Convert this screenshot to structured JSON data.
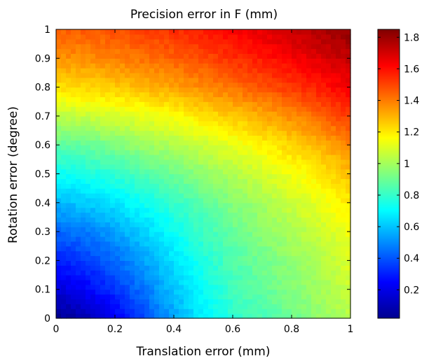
{
  "chart_data": {
    "type": "heatmap",
    "title": "Precision error in F (mm)",
    "xlabel": "Translation error (mm)",
    "ylabel": "Rotation error (degree)",
    "xlim": [
      0,
      1
    ],
    "ylim": [
      0,
      1
    ],
    "x_ticks": [
      "0",
      "0.2",
      "0.4",
      "0.6",
      "0.8",
      "1"
    ],
    "y_ticks": [
      "0",
      "0.1",
      "0.2",
      "0.3",
      "0.4",
      "0.5",
      "0.6",
      "0.7",
      "0.8",
      "0.9",
      "1"
    ],
    "colorbar": {
      "colormap": "jet",
      "range": [
        0.02,
        1.85
      ],
      "ticks": [
        "0.2",
        "0.4",
        "0.6",
        "0.8",
        "1",
        "1.2",
        "1.4",
        "1.6",
        "1.8"
      ]
    },
    "x": [
      0,
      0.1,
      0.2,
      0.3,
      0.4,
      0.5,
      0.6,
      0.7,
      0.8,
      0.9,
      1.0
    ],
    "y": [
      0,
      0.1,
      0.2,
      0.3,
      0.4,
      0.5,
      0.6,
      0.7,
      0.8,
      0.9,
      1.0
    ],
    "values": [
      [
        0.05,
        0.1,
        0.22,
        0.38,
        0.54,
        0.68,
        0.78,
        0.84,
        0.9,
        0.97,
        1.03
      ],
      [
        0.18,
        0.24,
        0.34,
        0.46,
        0.6,
        0.72,
        0.82,
        0.88,
        0.94,
        1.0,
        1.07
      ],
      [
        0.3,
        0.35,
        0.43,
        0.54,
        0.66,
        0.76,
        0.85,
        0.91,
        0.97,
        1.03,
        1.1
      ],
      [
        0.43,
        0.47,
        0.54,
        0.63,
        0.72,
        0.81,
        0.89,
        0.95,
        1.01,
        1.07,
        1.14
      ],
      [
        0.58,
        0.61,
        0.66,
        0.73,
        0.8,
        0.87,
        0.94,
        1.0,
        1.07,
        1.13,
        1.2
      ],
      [
        0.72,
        0.75,
        0.79,
        0.85,
        0.9,
        0.96,
        1.02,
        1.08,
        1.14,
        1.2,
        1.28
      ],
      [
        0.87,
        0.89,
        0.93,
        0.98,
        1.02,
        1.07,
        1.12,
        1.18,
        1.24,
        1.3,
        1.38
      ],
      [
        1.04,
        1.06,
        1.09,
        1.12,
        1.16,
        1.21,
        1.26,
        1.31,
        1.37,
        1.44,
        1.52
      ],
      [
        1.22,
        1.24,
        1.26,
        1.29,
        1.33,
        1.37,
        1.42,
        1.47,
        1.52,
        1.58,
        1.64
      ],
      [
        1.36,
        1.37,
        1.39,
        1.42,
        1.45,
        1.49,
        1.54,
        1.58,
        1.63,
        1.68,
        1.74
      ],
      [
        1.45,
        1.46,
        1.48,
        1.51,
        1.54,
        1.58,
        1.62,
        1.67,
        1.72,
        1.77,
        1.82
      ]
    ]
  }
}
